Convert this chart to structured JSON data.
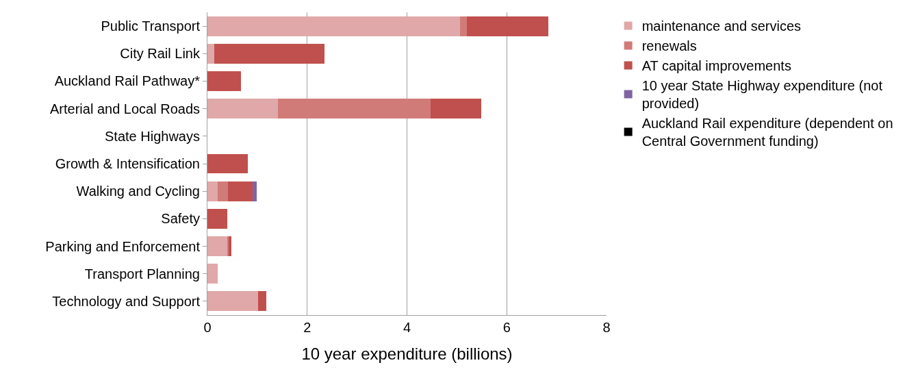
{
  "chart_data": {
    "type": "bar",
    "orientation": "horizontal",
    "stacked": true,
    "categories": [
      "Public Transport",
      "City Rail Link",
      "Auckland Rail Pathway*",
      "Arterial and Local Roads",
      "State Highways",
      "Growth & Intensification",
      "Walking and Cycling",
      "Safety",
      "Parking and Enforcement",
      "Transport Planning",
      "Technology and Support"
    ],
    "series": [
      {
        "name": "maintenance and services",
        "color": "#e0a8a8",
        "values": [
          5.07,
          0.14,
          null,
          1.41,
          null,
          null,
          0.2,
          null,
          0.4,
          0.21,
          1.01
        ]
      },
      {
        "name": "renewals",
        "color": "#d17b78",
        "values": [
          0.13,
          null,
          null,
          3.06,
          null,
          null,
          0.21,
          null,
          0.03,
          null,
          null
        ]
      },
      {
        "name": "AT capital improvements",
        "color": "#c0504d",
        "values": [
          1.63,
          2.21,
          0.67,
          1.02,
          null,
          0.81,
          0.49,
          0.4,
          0.05,
          null,
          0.17
        ]
      },
      {
        "name": "10 year State Highway expenditure (not provided)",
        "color": "#8064a2",
        "values": [
          null,
          null,
          null,
          null,
          null,
          null,
          0.09,
          null,
          null,
          null,
          null
        ]
      },
      {
        "name": "Auckland Rail expenditure (dependent on Central Government funding)",
        "color": "#000000",
        "values": [
          null,
          null,
          null,
          null,
          null,
          null,
          null,
          null,
          null,
          null,
          null
        ]
      }
    ],
    "xlabel": "10 year expenditure (billions)",
    "xlim": [
      0,
      8
    ],
    "xticks": [
      0,
      2,
      4,
      6,
      8
    ],
    "grid": "x",
    "legend": "right"
  }
}
